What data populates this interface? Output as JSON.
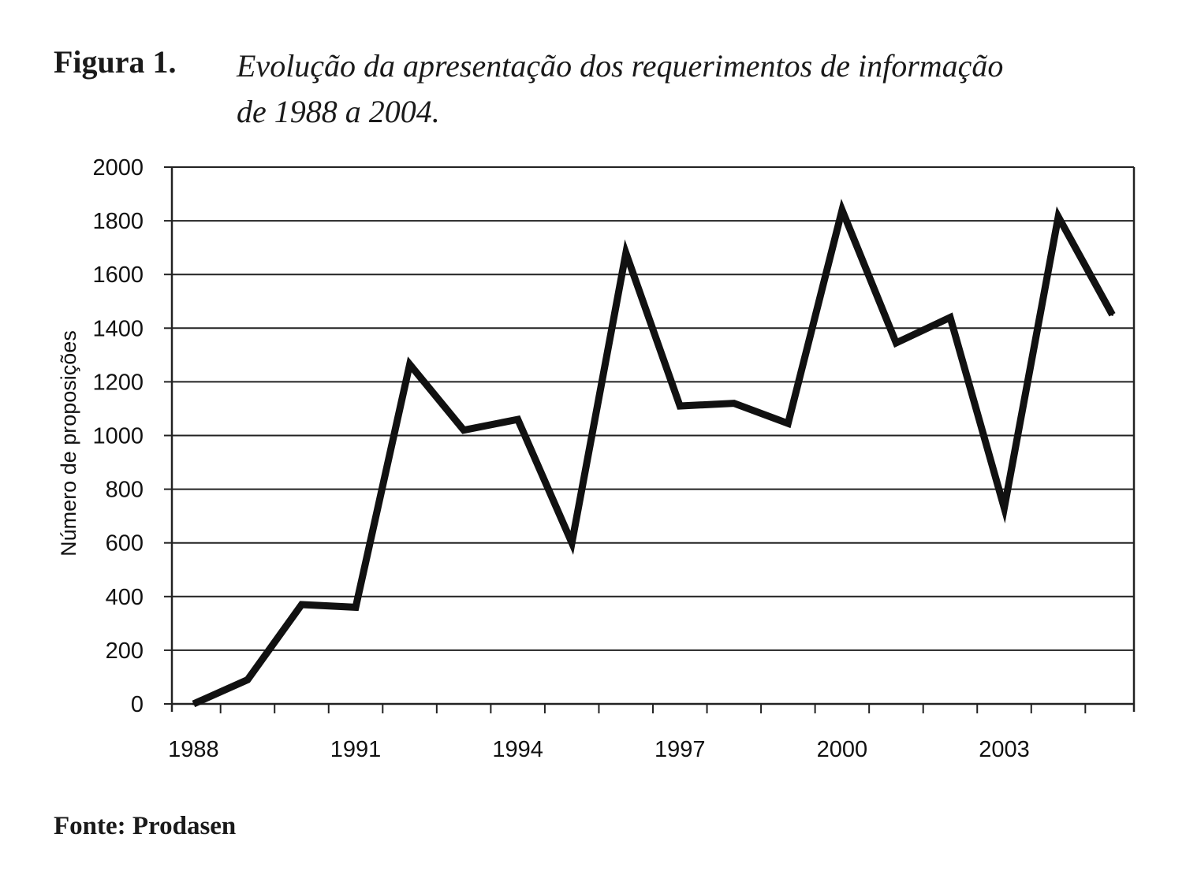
{
  "figure": {
    "label": "Figura 1.",
    "title_line1": "Evolução da apresentação dos requerimentos de informação",
    "title_line2": "de 1988 a 2004."
  },
  "source": "Fonte: Prodasen",
  "chart_data": {
    "type": "line",
    "title": "Evolução da apresentação dos requerimentos de informação de 1988 a 2004.",
    "xlabel": "",
    "ylabel": "Número de proposições",
    "x": [
      1988,
      1989,
      1990,
      1991,
      1992,
      1993,
      1994,
      1995,
      1996,
      1997,
      1998,
      1999,
      2000,
      2001,
      2002,
      2003,
      2004,
      2005
    ],
    "x_tick_labels": [
      "1988",
      "1991",
      "1994",
      "1997",
      "2000",
      "2003"
    ],
    "x_tick_label_values": [
      1988,
      1991,
      1994,
      1997,
      2000,
      2003
    ],
    "xlim": [
      1987.6,
      2005.4
    ],
    "y_ticks": [
      0,
      200,
      400,
      600,
      800,
      1000,
      1200,
      1400,
      1600,
      1800,
      2000
    ],
    "ylim": [
      0,
      2000
    ],
    "grid": true,
    "series": [
      {
        "values": [
          0,
          90,
          370,
          360,
          1265,
          1020,
          1060,
          600,
          1680,
          1110,
          1120,
          1045,
          1840,
          1345,
          1440,
          730,
          1815,
          1450
        ]
      }
    ],
    "line_color": "#111111"
  }
}
